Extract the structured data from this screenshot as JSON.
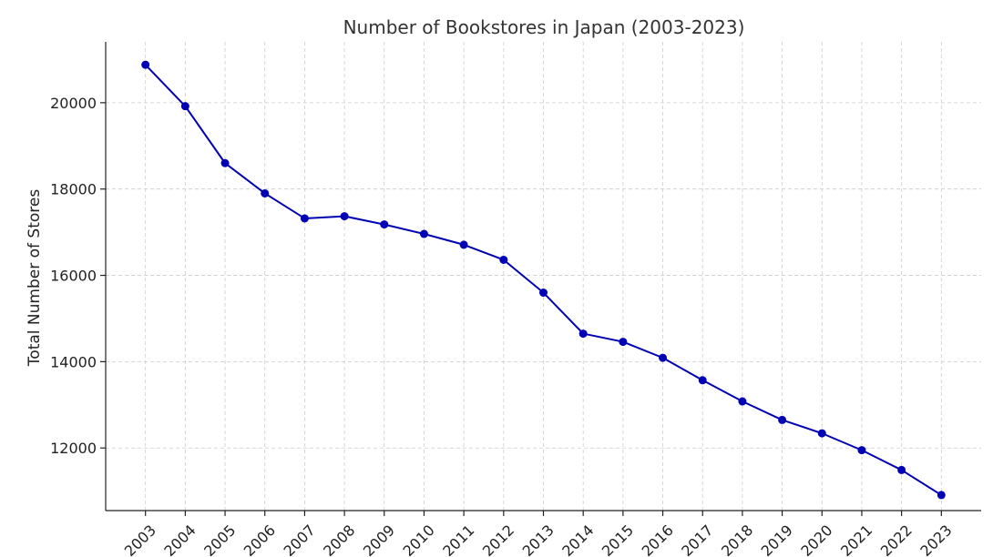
{
  "chart_data": {
    "type": "line",
    "title": "Number of Bookstores in Japan (2003-2023)",
    "xlabel": "",
    "ylabel": "Total Number of Stores",
    "x": [
      2003,
      2004,
      2005,
      2006,
      2007,
      2008,
      2009,
      2010,
      2011,
      2012,
      2013,
      2014,
      2015,
      2016,
      2017,
      2018,
      2019,
      2020,
      2021,
      2022,
      2023
    ],
    "x_tick_labels": [
      "2003",
      "2004",
      "2005",
      "2006",
      "2007",
      "2008",
      "2009",
      "2010",
      "2011",
      "2012",
      "2013",
      "2014",
      "2015",
      "2016",
      "2017",
      "2018",
      "2019",
      "2020",
      "2021",
      "2022",
      "2023"
    ],
    "y_ticks": [
      12000,
      14000,
      16000,
      18000,
      20000
    ],
    "y_tick_labels": [
      "12000",
      "14000",
      "16000",
      "18000",
      "20000"
    ],
    "ylim": [
      10550,
      21410
    ],
    "xlim": [
      2002.0,
      2024.0
    ],
    "grid": true,
    "series": [
      {
        "values": [
          20880,
          19920,
          18600,
          17900,
          17320,
          17370,
          17180,
          16960,
          16710,
          16360,
          15600,
          14650,
          14460,
          14090,
          13570,
          13080,
          12650,
          12340,
          11950,
          11490,
          10910
        ],
        "color": "#0000b4",
        "marker": "circle"
      }
    ]
  }
}
